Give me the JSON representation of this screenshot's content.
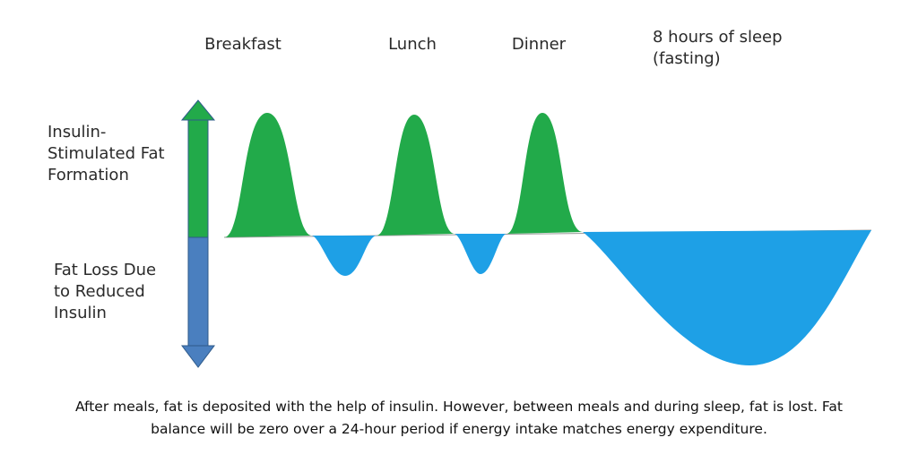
{
  "meal_labels": {
    "breakfast": "Breakfast",
    "lunch": "Lunch",
    "dinner": "Dinner",
    "sleep_line1": "8 hours of sleep",
    "sleep_line2": "(fasting)"
  },
  "axis_labels": {
    "top_line1": "Insulin-",
    "top_line2": "Stimulated Fat",
    "top_line3": "Formation",
    "bottom_line1": "Fat Loss Due",
    "bottom_line2": "to Reduced",
    "bottom_line3": "Insulin"
  },
  "caption": {
    "line1": "After meals, fat is deposited with the help of insulin. However, between meals and during sleep, fat is lost. Fat",
    "line2": "balance will be zero over a 24-hour period if energy intake matches energy expenditure."
  },
  "colors": {
    "gain": "#22aa4a",
    "loss": "#1ea0e6",
    "arrow_top": "#22aa4a",
    "arrow_bottom": "#4a7fbf",
    "arrow_outline": "#2e5a8a"
  }
}
